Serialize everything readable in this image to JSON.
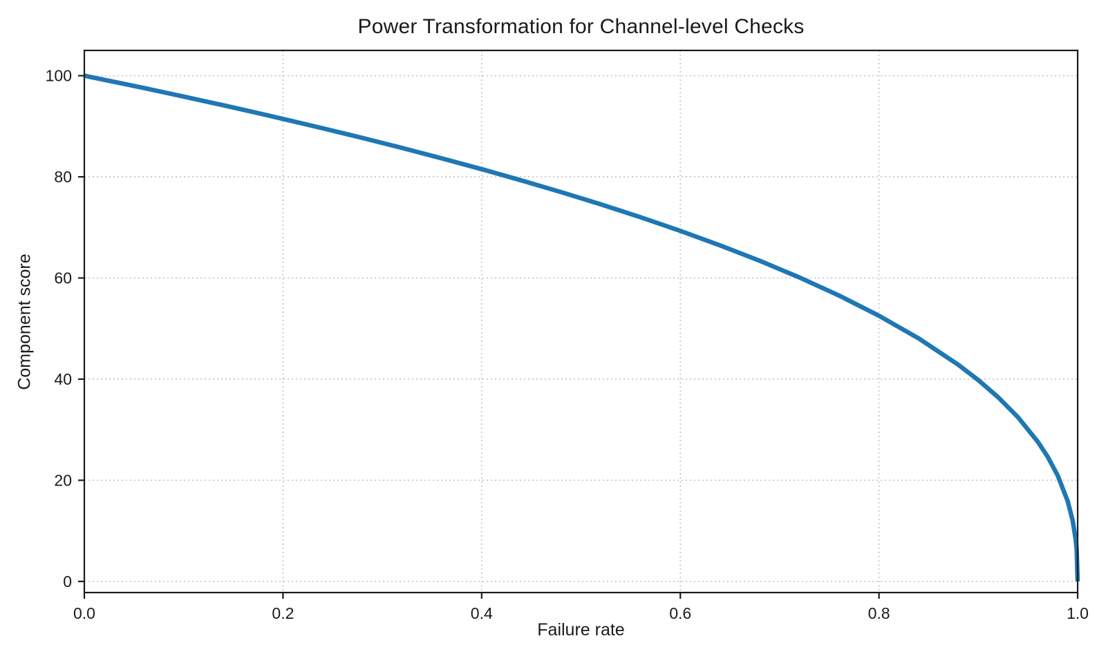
{
  "chart_data": {
    "type": "line",
    "title": "Power Transformation for Channel-level Checks",
    "xlabel": "Failure rate",
    "ylabel": "Component score",
    "function": "y = 100 * (1 - x)^0.4",
    "x": [
      0,
      0.02,
      0.04,
      0.06,
      0.08,
      0.1,
      0.12,
      0.14,
      0.16,
      0.18,
      0.2,
      0.24,
      0.28,
      0.32,
      0.36,
      0.4,
      0.44,
      0.48,
      0.52,
      0.56,
      0.6,
      0.64,
      0.68,
      0.72,
      0.76,
      0.8,
      0.84,
      0.88,
      0.9,
      0.92,
      0.94,
      0.96,
      0.97,
      0.98,
      0.99,
      0.995,
      0.998,
      0.999,
      1.0
    ],
    "series": [
      {
        "name": "component score",
        "values": [
          100,
          99.19,
          98.38,
          97.56,
          96.72,
          95.87,
          95.01,
          94.15,
          93.26,
          92.37,
          91.46,
          89.6,
          87.69,
          85.71,
          83.65,
          81.52,
          79.3,
          76.98,
          74.56,
          72.01,
          69.31,
          66.45,
          63.4,
          60.1,
          56.51,
          52.53,
          48.05,
          42.82,
          39.81,
          36.41,
          32.45,
          27.59,
          24.6,
          20.91,
          15.85,
          12.01,
          8.33,
          6.31,
          0
        ]
      }
    ],
    "xlim": [
      0,
      1
    ],
    "ylim": [
      -2.2,
      105
    ],
    "xticks": [
      0,
      0.2,
      0.4,
      0.6,
      0.8,
      1.0
    ],
    "xtick_labels": [
      "0.0",
      "0.2",
      "0.4",
      "0.6",
      "0.8",
      "1.0"
    ],
    "yticks": [
      0,
      20,
      40,
      60,
      80,
      100
    ],
    "ytick_labels": [
      "0",
      "20",
      "40",
      "60",
      "80",
      "100"
    ],
    "grid": true,
    "grid_style": "dotted",
    "legend": false,
    "line_width": 6.5,
    "colors": {
      "line": "#1f77b4",
      "grid": "#c8c8c8",
      "axis": "#1a1a1a",
      "text": "#1a1a1a",
      "background": "#ffffff"
    }
  }
}
